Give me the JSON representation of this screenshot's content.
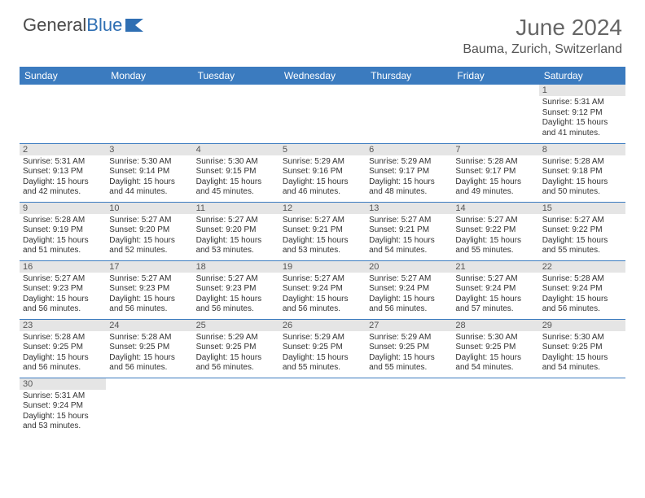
{
  "brand": {
    "part1": "General",
    "part2": "Blue"
  },
  "title": "June 2024",
  "location": "Bauma, Zurich, Switzerland",
  "colors": {
    "header_bg": "#3b7bbf",
    "header_text": "#ffffff",
    "daynum_bg": "#e5e5e5",
    "border": "#3b7bbf",
    "title_color": "#666666"
  },
  "weekdays": [
    "Sunday",
    "Monday",
    "Tuesday",
    "Wednesday",
    "Thursday",
    "Friday",
    "Saturday"
  ],
  "weeks": [
    [
      null,
      null,
      null,
      null,
      null,
      null,
      {
        "n": "1",
        "sr": "Sunrise: 5:31 AM",
        "ss": "Sunset: 9:12 PM",
        "dl": "Daylight: 15 hours and 41 minutes."
      }
    ],
    [
      {
        "n": "2",
        "sr": "Sunrise: 5:31 AM",
        "ss": "Sunset: 9:13 PM",
        "dl": "Daylight: 15 hours and 42 minutes."
      },
      {
        "n": "3",
        "sr": "Sunrise: 5:30 AM",
        "ss": "Sunset: 9:14 PM",
        "dl": "Daylight: 15 hours and 44 minutes."
      },
      {
        "n": "4",
        "sr": "Sunrise: 5:30 AM",
        "ss": "Sunset: 9:15 PM",
        "dl": "Daylight: 15 hours and 45 minutes."
      },
      {
        "n": "5",
        "sr": "Sunrise: 5:29 AM",
        "ss": "Sunset: 9:16 PM",
        "dl": "Daylight: 15 hours and 46 minutes."
      },
      {
        "n": "6",
        "sr": "Sunrise: 5:29 AM",
        "ss": "Sunset: 9:17 PM",
        "dl": "Daylight: 15 hours and 48 minutes."
      },
      {
        "n": "7",
        "sr": "Sunrise: 5:28 AM",
        "ss": "Sunset: 9:17 PM",
        "dl": "Daylight: 15 hours and 49 minutes."
      },
      {
        "n": "8",
        "sr": "Sunrise: 5:28 AM",
        "ss": "Sunset: 9:18 PM",
        "dl": "Daylight: 15 hours and 50 minutes."
      }
    ],
    [
      {
        "n": "9",
        "sr": "Sunrise: 5:28 AM",
        "ss": "Sunset: 9:19 PM",
        "dl": "Daylight: 15 hours and 51 minutes."
      },
      {
        "n": "10",
        "sr": "Sunrise: 5:27 AM",
        "ss": "Sunset: 9:20 PM",
        "dl": "Daylight: 15 hours and 52 minutes."
      },
      {
        "n": "11",
        "sr": "Sunrise: 5:27 AM",
        "ss": "Sunset: 9:20 PM",
        "dl": "Daylight: 15 hours and 53 minutes."
      },
      {
        "n": "12",
        "sr": "Sunrise: 5:27 AM",
        "ss": "Sunset: 9:21 PM",
        "dl": "Daylight: 15 hours and 53 minutes."
      },
      {
        "n": "13",
        "sr": "Sunrise: 5:27 AM",
        "ss": "Sunset: 9:21 PM",
        "dl": "Daylight: 15 hours and 54 minutes."
      },
      {
        "n": "14",
        "sr": "Sunrise: 5:27 AM",
        "ss": "Sunset: 9:22 PM",
        "dl": "Daylight: 15 hours and 55 minutes."
      },
      {
        "n": "15",
        "sr": "Sunrise: 5:27 AM",
        "ss": "Sunset: 9:22 PM",
        "dl": "Daylight: 15 hours and 55 minutes."
      }
    ],
    [
      {
        "n": "16",
        "sr": "Sunrise: 5:27 AM",
        "ss": "Sunset: 9:23 PM",
        "dl": "Daylight: 15 hours and 56 minutes."
      },
      {
        "n": "17",
        "sr": "Sunrise: 5:27 AM",
        "ss": "Sunset: 9:23 PM",
        "dl": "Daylight: 15 hours and 56 minutes."
      },
      {
        "n": "18",
        "sr": "Sunrise: 5:27 AM",
        "ss": "Sunset: 9:23 PM",
        "dl": "Daylight: 15 hours and 56 minutes."
      },
      {
        "n": "19",
        "sr": "Sunrise: 5:27 AM",
        "ss": "Sunset: 9:24 PM",
        "dl": "Daylight: 15 hours and 56 minutes."
      },
      {
        "n": "20",
        "sr": "Sunrise: 5:27 AM",
        "ss": "Sunset: 9:24 PM",
        "dl": "Daylight: 15 hours and 56 minutes."
      },
      {
        "n": "21",
        "sr": "Sunrise: 5:27 AM",
        "ss": "Sunset: 9:24 PM",
        "dl": "Daylight: 15 hours and 57 minutes."
      },
      {
        "n": "22",
        "sr": "Sunrise: 5:28 AM",
        "ss": "Sunset: 9:24 PM",
        "dl": "Daylight: 15 hours and 56 minutes."
      }
    ],
    [
      {
        "n": "23",
        "sr": "Sunrise: 5:28 AM",
        "ss": "Sunset: 9:25 PM",
        "dl": "Daylight: 15 hours and 56 minutes."
      },
      {
        "n": "24",
        "sr": "Sunrise: 5:28 AM",
        "ss": "Sunset: 9:25 PM",
        "dl": "Daylight: 15 hours and 56 minutes."
      },
      {
        "n": "25",
        "sr": "Sunrise: 5:29 AM",
        "ss": "Sunset: 9:25 PM",
        "dl": "Daylight: 15 hours and 56 minutes."
      },
      {
        "n": "26",
        "sr": "Sunrise: 5:29 AM",
        "ss": "Sunset: 9:25 PM",
        "dl": "Daylight: 15 hours and 55 minutes."
      },
      {
        "n": "27",
        "sr": "Sunrise: 5:29 AM",
        "ss": "Sunset: 9:25 PM",
        "dl": "Daylight: 15 hours and 55 minutes."
      },
      {
        "n": "28",
        "sr": "Sunrise: 5:30 AM",
        "ss": "Sunset: 9:25 PM",
        "dl": "Daylight: 15 hours and 54 minutes."
      },
      {
        "n": "29",
        "sr": "Sunrise: 5:30 AM",
        "ss": "Sunset: 9:25 PM",
        "dl": "Daylight: 15 hours and 54 minutes."
      }
    ],
    [
      {
        "n": "30",
        "sr": "Sunrise: 5:31 AM",
        "ss": "Sunset: 9:24 PM",
        "dl": "Daylight: 15 hours and 53 minutes."
      },
      null,
      null,
      null,
      null,
      null,
      null
    ]
  ]
}
